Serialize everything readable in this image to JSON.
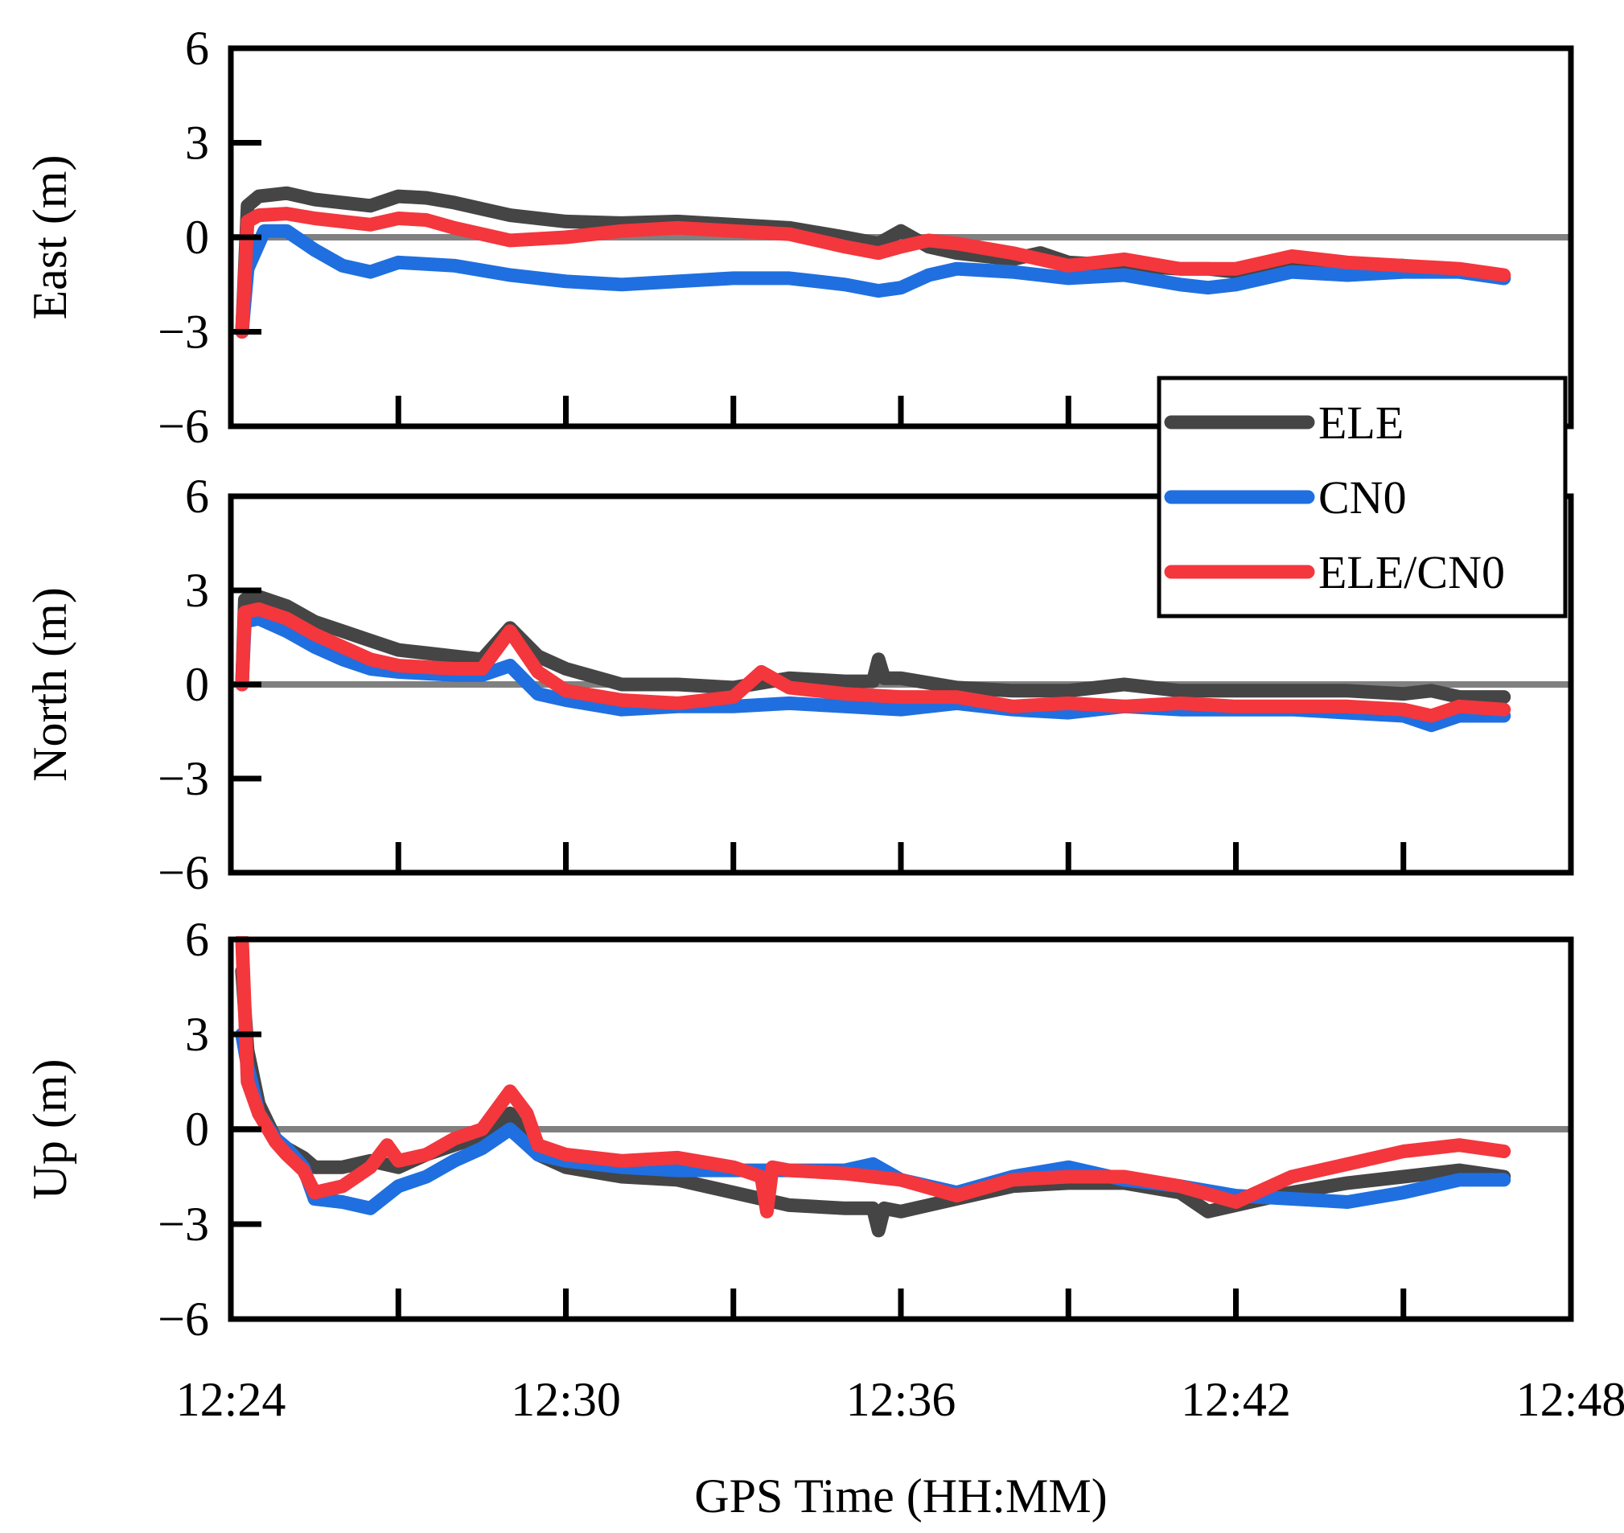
{
  "chart_data": {
    "type": "line",
    "xlabel": "GPS Time (HH:MM)",
    "x_unit": "minutes since 12:24",
    "xlim": [
      0,
      24
    ],
    "x_ticks": [
      0,
      6,
      12,
      18,
      24
    ],
    "x_tick_labels": [
      "12:24",
      "12:30",
      "12:36",
      "12:42",
      "12:48"
    ],
    "legend": {
      "placement": "right, between top and middle panels",
      "entries": [
        {
          "label": "ELE",
          "color": "#454545"
        },
        {
          "label": "CN0",
          "color": "#1f6fe0"
        },
        {
          "label": "ELE/CN0",
          "color": "#f4363d"
        }
      ]
    },
    "panels": [
      {
        "ylabel": "East (m)",
        "ylim": [
          -6,
          6
        ],
        "y_ticks": [
          -6,
          -3,
          0,
          3,
          6
        ],
        "y_tick_labels": [
          "−6",
          "−3",
          "0",
          "3",
          "6"
        ],
        "zero_line": true,
        "series": [
          {
            "name": "ELE",
            "color": "#454545",
            "x": [
              0.2,
              0.3,
              0.5,
              1.0,
              1.5,
              2.0,
              2.5,
              3.0,
              3.5,
              4.0,
              5.0,
              6.0,
              7.0,
              8.0,
              9.0,
              10.0,
              11.0,
              11.6,
              12.0,
              12.5,
              13.0,
              14.0,
              14.5,
              15.0,
              16.0,
              17.0,
              17.5,
              18.0,
              19.0,
              20.0,
              21.0,
              22.0,
              22.8
            ],
            "y": [
              -3.0,
              1.0,
              1.3,
              1.4,
              1.2,
              1.1,
              1.0,
              1.3,
              1.25,
              1.1,
              0.7,
              0.5,
              0.45,
              0.5,
              0.4,
              0.3,
              0.0,
              -0.2,
              0.2,
              -0.3,
              -0.5,
              -0.7,
              -0.5,
              -0.8,
              -0.9,
              -1.0,
              -1.0,
              -1.1,
              -0.8,
              -0.9,
              -0.9,
              -1.1,
              -1.3
            ]
          },
          {
            "name": "CN0",
            "color": "#1f6fe0",
            "x": [
              0.2,
              0.3,
              0.6,
              1.0,
              1.5,
              2.0,
              2.5,
              3.0,
              4.0,
              5.0,
              6.0,
              7.0,
              8.0,
              9.0,
              10.0,
              11.0,
              11.6,
              12.0,
              12.5,
              13.0,
              14.0,
              15.0,
              16.0,
              17.0,
              17.5,
              18.0,
              19.0,
              20.0,
              21.0,
              22.0,
              22.8
            ],
            "y": [
              -3.0,
              -1.0,
              0.2,
              0.2,
              -0.4,
              -0.9,
              -1.1,
              -0.8,
              -0.9,
              -1.2,
              -1.4,
              -1.5,
              -1.4,
              -1.3,
              -1.3,
              -1.5,
              -1.7,
              -1.6,
              -1.2,
              -1.0,
              -1.1,
              -1.3,
              -1.2,
              -1.5,
              -1.6,
              -1.5,
              -1.1,
              -1.2,
              -1.1,
              -1.1,
              -1.3
            ]
          },
          {
            "name": "ELE/CN0",
            "color": "#f4363d",
            "x": [
              0.2,
              0.3,
              0.5,
              1.0,
              1.5,
              2.0,
              2.5,
              3.0,
              3.5,
              4.0,
              5.0,
              6.0,
              7.0,
              8.0,
              9.0,
              10.0,
              11.0,
              11.6,
              12.0,
              12.5,
              13.0,
              14.0,
              14.5,
              15.0,
              16.0,
              17.0,
              17.5,
              18.0,
              19.0,
              20.0,
              21.0,
              22.0,
              22.8
            ],
            "y": [
              -3.0,
              0.5,
              0.7,
              0.75,
              0.6,
              0.5,
              0.4,
              0.6,
              0.55,
              0.3,
              -0.1,
              0.0,
              0.2,
              0.3,
              0.2,
              0.1,
              -0.3,
              -0.5,
              -0.3,
              -0.1,
              -0.2,
              -0.5,
              -0.7,
              -0.9,
              -0.7,
              -1.0,
              -1.0,
              -1.0,
              -0.6,
              -0.8,
              -0.9,
              -1.0,
              -1.2
            ]
          }
        ]
      },
      {
        "ylabel": "North (m)",
        "ylim": [
          -6,
          6
        ],
        "y_ticks": [
          -6,
          -3,
          0,
          3,
          6
        ],
        "y_tick_labels": [
          "−6",
          "−3",
          "0",
          "3",
          "6"
        ],
        "zero_line": true,
        "series": [
          {
            "name": "ELE",
            "color": "#454545",
            "x": [
              0.2,
              0.25,
              0.5,
              1.0,
              1.5,
              2.0,
              2.5,
              3.0,
              3.5,
              4.0,
              4.5,
              5.0,
              5.5,
              6.0,
              7.0,
              8.0,
              9.0,
              10.0,
              11.0,
              11.5,
              11.6,
              11.7,
              12.0,
              13.0,
              14.0,
              15.0,
              16.0,
              17.0,
              18.0,
              19.0,
              20.0,
              21.0,
              21.5,
              22.0,
              22.8
            ],
            "y": [
              0.0,
              2.7,
              2.8,
              2.5,
              2.0,
              1.7,
              1.4,
              1.1,
              1.0,
              0.9,
              0.8,
              1.8,
              0.9,
              0.5,
              0.0,
              0.0,
              -0.1,
              0.2,
              0.1,
              0.1,
              0.8,
              0.2,
              0.2,
              -0.1,
              -0.2,
              -0.2,
              0.0,
              -0.2,
              -0.2,
              -0.2,
              -0.2,
              -0.3,
              -0.2,
              -0.4,
              -0.4
            ]
          },
          {
            "name": "CN0",
            "color": "#1f6fe0",
            "x": [
              0.2,
              0.25,
              0.5,
              1.0,
              1.5,
              2.0,
              2.5,
              3.0,
              3.5,
              4.0,
              4.5,
              5.0,
              5.5,
              6.0,
              7.0,
              8.0,
              9.0,
              10.0,
              11.0,
              12.0,
              13.0,
              14.0,
              15.0,
              16.0,
              17.0,
              18.0,
              19.0,
              20.0,
              21.0,
              21.5,
              22.0,
              22.8
            ],
            "y": [
              0.0,
              2.0,
              2.1,
              1.7,
              1.2,
              0.8,
              0.5,
              0.4,
              0.35,
              0.3,
              0.3,
              0.6,
              -0.3,
              -0.5,
              -0.8,
              -0.7,
              -0.7,
              -0.6,
              -0.7,
              -0.8,
              -0.6,
              -0.8,
              -0.9,
              -0.7,
              -0.8,
              -0.8,
              -0.8,
              -0.9,
              -1.0,
              -1.3,
              -1.0,
              -1.0
            ]
          },
          {
            "name": "ELE/CN0",
            "color": "#f4363d",
            "x": [
              0.2,
              0.25,
              0.5,
              1.0,
              1.5,
              2.0,
              2.5,
              3.0,
              3.5,
              4.0,
              4.5,
              5.0,
              5.5,
              6.0,
              7.0,
              8.0,
              9.0,
              9.5,
              10.0,
              11.0,
              12.0,
              13.0,
              14.0,
              15.0,
              16.0,
              17.0,
              18.0,
              19.0,
              20.0,
              21.0,
              21.5,
              22.0,
              22.8
            ],
            "y": [
              0.0,
              2.3,
              2.4,
              2.1,
              1.6,
              1.2,
              0.8,
              0.6,
              0.55,
              0.5,
              0.5,
              1.7,
              0.4,
              -0.2,
              -0.5,
              -0.6,
              -0.4,
              0.4,
              -0.1,
              -0.3,
              -0.4,
              -0.4,
              -0.7,
              -0.6,
              -0.7,
              -0.6,
              -0.7,
              -0.7,
              -0.7,
              -0.8,
              -1.0,
              -0.7,
              -0.8
            ]
          }
        ]
      },
      {
        "ylabel": "Up (m)",
        "ylim": [
          -6,
          6
        ],
        "y_ticks": [
          -6,
          -3,
          0,
          3,
          6
        ],
        "y_tick_labels": [
          "−6",
          "−3",
          "0",
          "3",
          "6"
        ],
        "zero_line": true,
        "series": [
          {
            "name": "ELE",
            "color": "#454545",
            "x": [
              0.2,
              0.3,
              0.5,
              0.8,
              1.0,
              1.3,
              1.5,
              2.0,
              2.5,
              3.0,
              3.5,
              4.0,
              4.5,
              5.0,
              5.5,
              6.0,
              7.0,
              8.0,
              9.0,
              10.0,
              11.0,
              11.5,
              11.6,
              11.7,
              12.0,
              13.0,
              14.0,
              15.0,
              16.0,
              17.0,
              17.5,
              18.0,
              19.0,
              20.0,
              21.0,
              22.0,
              22.8
            ],
            "y": [
              5.0,
              2.5,
              0.8,
              -0.3,
              -0.6,
              -0.9,
              -1.2,
              -1.2,
              -1.0,
              -1.2,
              -0.8,
              -0.5,
              -0.2,
              0.5,
              -0.8,
              -1.2,
              -1.5,
              -1.6,
              -2.0,
              -2.4,
              -2.5,
              -2.5,
              -3.2,
              -2.5,
              -2.6,
              -2.2,
              -1.8,
              -1.7,
              -1.7,
              -2.0,
              -2.6,
              -2.4,
              -2.0,
              -1.7,
              -1.5,
              -1.3,
              -1.5
            ]
          },
          {
            "name": "CN0",
            "color": "#1f6fe0",
            "x": [
              0.2,
              0.3,
              0.5,
              0.8,
              1.0,
              1.3,
              1.5,
              2.0,
              2.5,
              3.0,
              3.5,
              4.0,
              4.5,
              5.0,
              5.5,
              6.0,
              7.0,
              8.0,
              9.0,
              10.0,
              11.0,
              11.5,
              12.0,
              13.0,
              14.0,
              15.0,
              16.0,
              17.0,
              18.0,
              19.0,
              20.0,
              21.0,
              22.0,
              22.8
            ],
            "y": [
              3.0,
              2.0,
              0.5,
              -0.3,
              -0.6,
              -1.2,
              -2.2,
              -2.3,
              -2.5,
              -1.8,
              -1.5,
              -1.0,
              -0.6,
              0.0,
              -0.8,
              -1.0,
              -1.2,
              -1.3,
              -1.3,
              -1.3,
              -1.3,
              -1.1,
              -1.6,
              -2.0,
              -1.5,
              -1.2,
              -1.6,
              -1.8,
              -2.1,
              -2.2,
              -2.3,
              -2.0,
              -1.6,
              -1.6
            ]
          },
          {
            "name": "ELE/CN0",
            "color": "#f4363d",
            "x": [
              0.2,
              0.3,
              0.5,
              0.8,
              1.0,
              1.3,
              1.5,
              2.0,
              2.5,
              2.8,
              3.0,
              3.5,
              4.0,
              4.5,
              5.0,
              5.3,
              5.5,
              6.0,
              7.0,
              8.0,
              9.0,
              9.5,
              9.6,
              9.7,
              10.0,
              11.0,
              11.5,
              12.0,
              13.0,
              14.0,
              15.0,
              16.0,
              17.0,
              18.0,
              19.0,
              20.0,
              21.0,
              22.0,
              22.8
            ],
            "y": [
              6.0,
              1.5,
              0.5,
              -0.4,
              -0.8,
              -1.3,
              -2.0,
              -1.8,
              -1.2,
              -0.5,
              -1.0,
              -0.8,
              -0.3,
              0.0,
              1.2,
              0.5,
              -0.5,
              -0.8,
              -1.0,
              -0.9,
              -1.2,
              -1.5,
              -2.6,
              -1.2,
              -1.3,
              -1.4,
              -1.5,
              -1.6,
              -2.1,
              -1.6,
              -1.5,
              -1.5,
              -1.8,
              -2.3,
              -1.5,
              -1.1,
              -0.7,
              -0.5,
              -0.7
            ]
          }
        ]
      }
    ]
  }
}
